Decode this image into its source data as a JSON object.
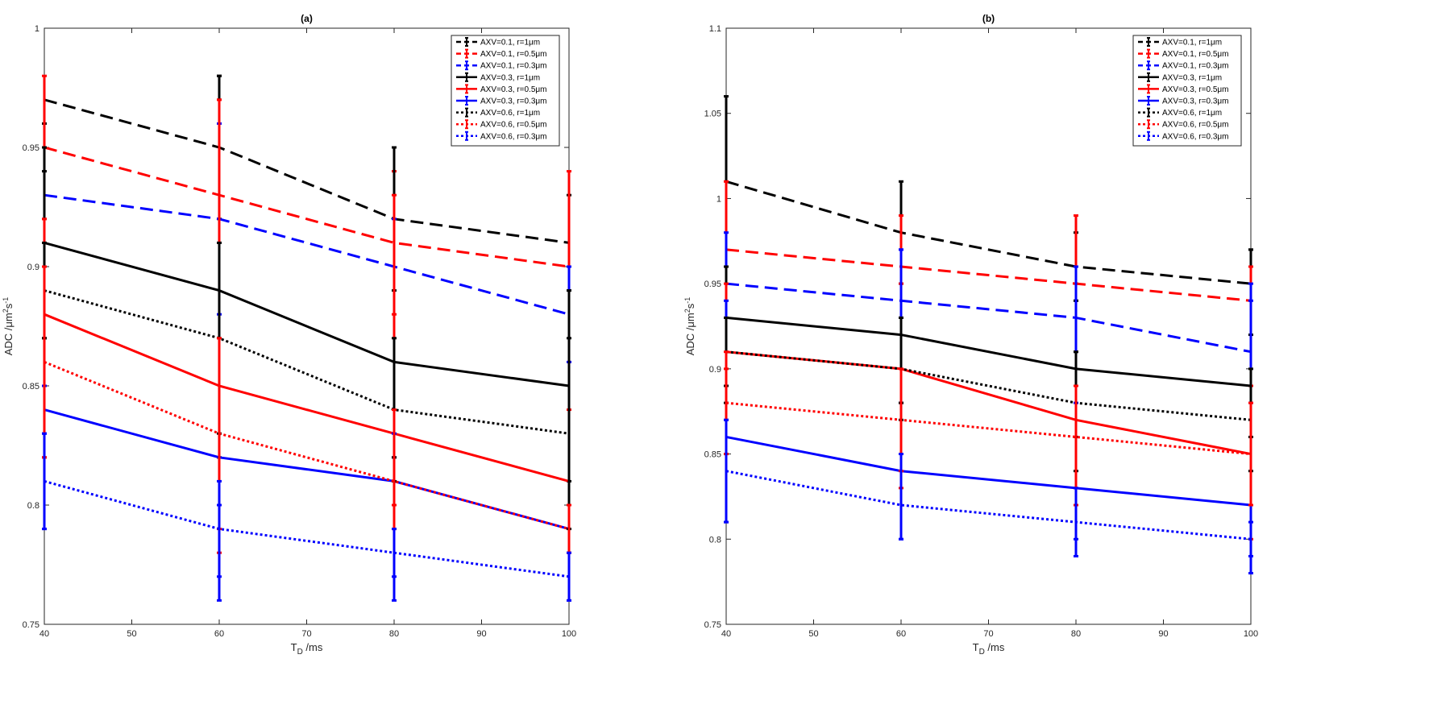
{
  "chart_data": [
    {
      "type": "line",
      "title": "(a)",
      "xlabel_main": "T",
      "xlabel_sub": "D",
      "xlabel_unit": " /ms",
      "ylabel_pre": "ADC /",
      "ylabel_mu": "μ",
      "ylabel_m": "m",
      "ylabel_2": "2",
      "ylabel_s": "s",
      "ylabel_exp": "-1",
      "xlim": [
        40,
        100
      ],
      "ylim": [
        0.75,
        1
      ],
      "xticks": [
        40,
        50,
        60,
        70,
        80,
        90,
        100
      ],
      "xtick_labels": [
        "40",
        "50",
        "60",
        "70",
        "80",
        "90",
        "100"
      ],
      "yticks": [
        0.75,
        0.8,
        0.85,
        0.9,
        0.95,
        1
      ],
      "ytick_labels": [
        "0.75",
        "0.8",
        "0.85",
        "0.9",
        "0.95",
        "1"
      ],
      "x": [
        40,
        60,
        80,
        100
      ],
      "legend_position": "top-right",
      "series": [
        {
          "name": "AXV=0.1, r=1μm",
          "color": "#000000",
          "style": "dashed",
          "values": [
            0.97,
            0.95,
            0.92,
            0.91
          ],
          "err_low": [
            0.94,
            0.92,
            0.89,
            0.89
          ],
          "err_high": [
            0.96,
            0.98,
            0.95,
            0.93
          ]
        },
        {
          "name": "AXV=0.1, r=0.5μm",
          "color": "#ff0000",
          "style": "dashed",
          "values": [
            0.95,
            0.93,
            0.91,
            0.9
          ],
          "err_low": [
            0.92,
            0.87,
            0.88,
            0.86
          ],
          "err_high": [
            0.98,
            0.97,
            0.94,
            0.94
          ]
        },
        {
          "name": "AXV=0.1, r=0.3μm",
          "color": "#0000ff",
          "style": "dashed",
          "values": [
            0.93,
            0.92,
            0.9,
            0.88
          ],
          "err_low": [
            0.83,
            0.8,
            0.82,
            0.86
          ],
          "err_high": [
            0.95,
            0.96,
            0.92,
            0.9
          ]
        },
        {
          "name": "AXV=0.3, r=1μm",
          "color": "#000000",
          "style": "solid",
          "values": [
            0.91,
            0.89,
            0.86,
            0.85
          ],
          "err_low": [
            0.87,
            0.82,
            0.82,
            0.81
          ],
          "err_high": [
            0.95,
            0.98,
            0.95,
            0.89
          ]
        },
        {
          "name": "AXV=0.3, r=0.5μm",
          "color": "#ff0000",
          "style": "solid",
          "values": [
            0.88,
            0.85,
            0.83,
            0.81
          ],
          "err_low": [
            0.82,
            0.78,
            0.8,
            0.78
          ],
          "err_high": [
            0.92,
            0.97,
            0.93,
            0.84
          ]
        },
        {
          "name": "AXV=0.3, r=0.3μm",
          "color": "#0000ff",
          "style": "solid",
          "values": [
            0.84,
            0.82,
            0.81,
            0.79
          ],
          "err_low": [
            0.79,
            0.76,
            0.76,
            0.76
          ],
          "err_high": [
            0.85,
            0.88,
            0.83,
            0.8
          ]
        },
        {
          "name": "AXV=0.6, r=1μm",
          "color": "#000000",
          "style": "dotted",
          "values": [
            0.89,
            0.87,
            0.84,
            0.83
          ],
          "err_low": [
            0.87,
            0.83,
            0.81,
            0.79
          ],
          "err_high": [
            0.91,
            0.91,
            0.87,
            0.87
          ]
        },
        {
          "name": "AXV=0.6, r=0.5μm",
          "color": "#ff0000",
          "style": "dotted",
          "values": [
            0.86,
            0.83,
            0.81,
            0.79
          ],
          "err_low": [
            0.82,
            0.79,
            0.79,
            0.78
          ],
          "err_high": [
            0.9,
            0.87,
            0.84,
            0.8
          ]
        },
        {
          "name": "AXV=0.6, r=0.3μm",
          "color": "#0000ff",
          "style": "dotted",
          "values": [
            0.81,
            0.79,
            0.78,
            0.77
          ],
          "err_low": [
            0.79,
            0.77,
            0.77,
            0.76
          ],
          "err_high": [
            0.83,
            0.81,
            0.79,
            0.78
          ]
        }
      ]
    },
    {
      "type": "line",
      "title": "(b)",
      "xlabel_main": "T",
      "xlabel_sub": "D",
      "xlabel_unit": " /ms",
      "ylabel_pre": "ADC /",
      "ylabel_mu": "μ",
      "ylabel_m": "m",
      "ylabel_2": "2",
      "ylabel_s": "s",
      "ylabel_exp": "-1",
      "xlim": [
        40,
        100
      ],
      "ylim": [
        0.75,
        1.1
      ],
      "xticks": [
        40,
        50,
        60,
        70,
        80,
        90,
        100
      ],
      "xtick_labels": [
        "40",
        "50",
        "60",
        "70",
        "80",
        "90",
        "100"
      ],
      "yticks": [
        0.75,
        0.8,
        0.85,
        0.9,
        0.95,
        1,
        1.05,
        1.1
      ],
      "ytick_labels": [
        "0.75",
        "0.8",
        "0.85",
        "0.9",
        "0.95",
        "1",
        "1.05",
        "1.1"
      ],
      "x": [
        40,
        60,
        80,
        100
      ],
      "legend_position": "top-right",
      "series": [
        {
          "name": "AXV=0.1, r=1μm",
          "color": "#000000",
          "style": "dashed",
          "values": [
            1.01,
            0.98,
            0.96,
            0.95
          ],
          "err_low": [
            0.96,
            0.93,
            0.91,
            0.92
          ],
          "err_high": [
            1.06,
            1.01,
            0.98,
            0.97
          ]
        },
        {
          "name": "AXV=0.1, r=0.5μm",
          "color": "#ff0000",
          "style": "dashed",
          "values": [
            0.97,
            0.96,
            0.95,
            0.94
          ],
          "err_low": [
            0.9,
            0.88,
            0.89,
            0.89
          ],
          "err_high": [
            1.01,
            0.99,
            0.99,
            0.96
          ]
        },
        {
          "name": "AXV=0.1, r=0.3μm",
          "color": "#0000ff",
          "style": "dashed",
          "values": [
            0.95,
            0.94,
            0.93,
            0.91
          ],
          "err_low": [
            0.87,
            0.88,
            0.88,
            0.88
          ],
          "err_high": [
            0.98,
            0.97,
            0.94,
            0.94
          ]
        },
        {
          "name": "AXV=0.3, r=1μm",
          "color": "#000000",
          "style": "solid",
          "values": [
            0.93,
            0.92,
            0.9,
            0.89
          ],
          "err_low": [
            0.89,
            0.88,
            0.86,
            0.86
          ],
          "err_high": [
            0.96,
            0.95,
            0.94,
            0.97
          ]
        },
        {
          "name": "AXV=0.3, r=0.5μm",
          "color": "#ff0000",
          "style": "solid",
          "values": [
            0.91,
            0.9,
            0.87,
            0.85
          ],
          "err_low": [
            0.85,
            0.83,
            0.82,
            0.8
          ],
          "err_high": [
            0.95,
            0.95,
            0.95,
            0.96
          ]
        },
        {
          "name": "AXV=0.3, r=0.3μm",
          "color": "#0000ff",
          "style": "solid",
          "values": [
            0.86,
            0.84,
            0.83,
            0.82
          ],
          "err_low": [
            0.81,
            0.8,
            0.79,
            0.78
          ],
          "err_high": [
            0.94,
            0.97,
            0.96,
            0.95
          ]
        },
        {
          "name": "AXV=0.6, r=1μm",
          "color": "#000000",
          "style": "dotted",
          "values": [
            0.91,
            0.9,
            0.88,
            0.87
          ],
          "err_low": [
            0.88,
            0.87,
            0.84,
            0.84
          ],
          "err_high": [
            0.93,
            0.93,
            0.91,
            0.9
          ]
        },
        {
          "name": "AXV=0.6, r=0.5μm",
          "color": "#ff0000",
          "style": "dotted",
          "values": [
            0.88,
            0.87,
            0.86,
            0.85
          ],
          "err_low": [
            0.85,
            0.84,
            0.83,
            0.82
          ],
          "err_high": [
            0.91,
            0.9,
            0.89,
            0.88
          ]
        },
        {
          "name": "AXV=0.6, r=0.3μm",
          "color": "#0000ff",
          "style": "dotted",
          "values": [
            0.84,
            0.82,
            0.81,
            0.8
          ],
          "err_low": [
            0.81,
            0.8,
            0.8,
            0.79
          ],
          "err_high": [
            0.87,
            0.85,
            0.83,
            0.81
          ]
        }
      ]
    }
  ]
}
